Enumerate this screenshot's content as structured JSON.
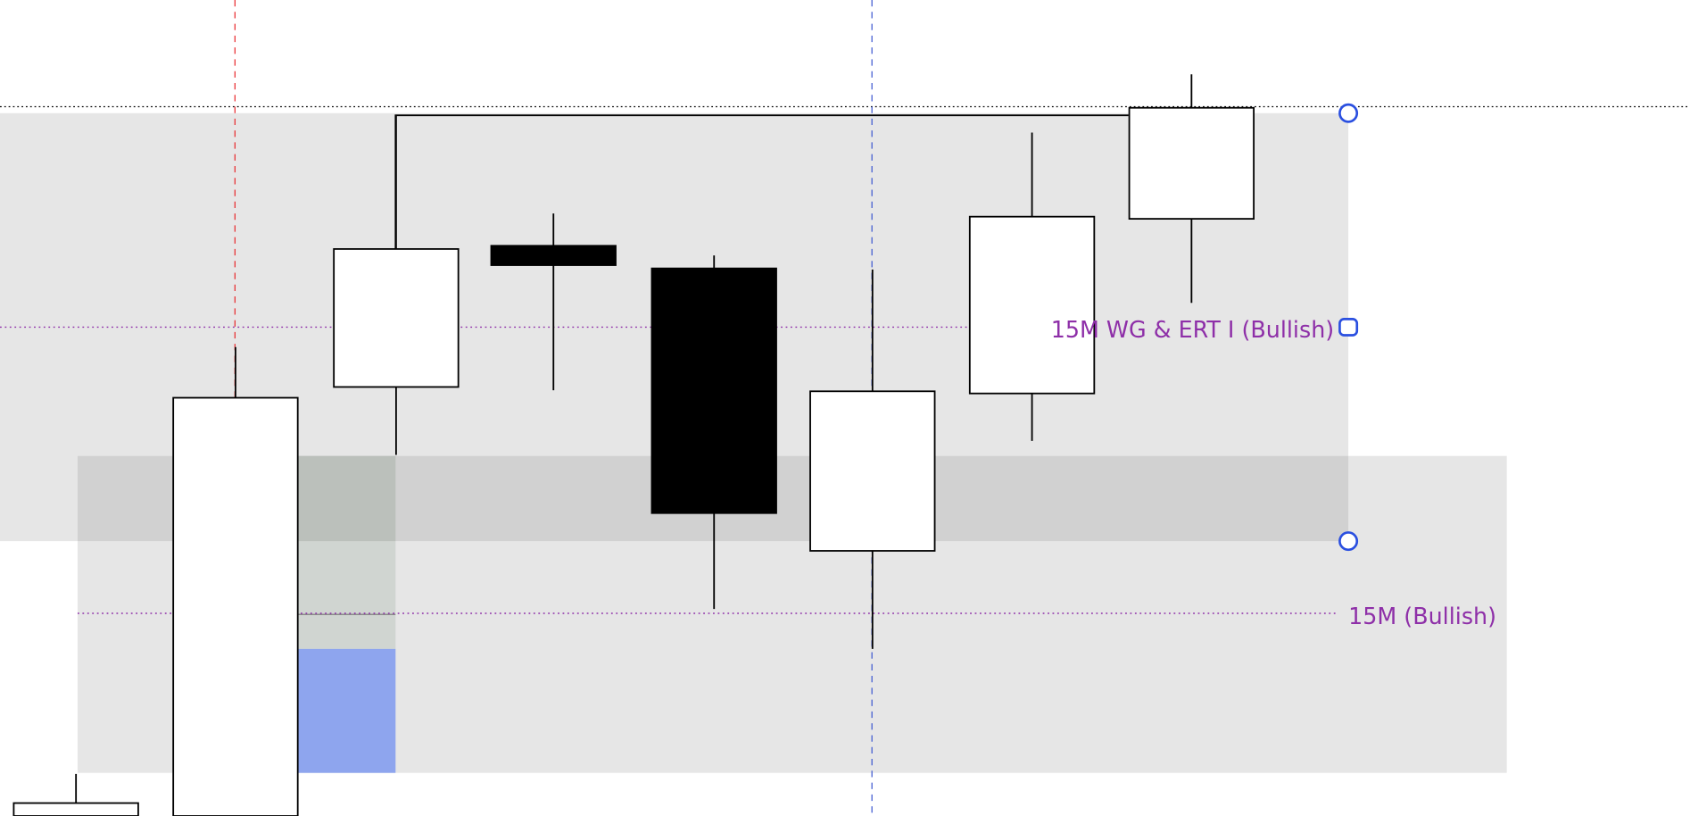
{
  "chart_data": {
    "type": "candlestick",
    "title": "",
    "xlabel": "",
    "ylabel": "",
    "grid": false,
    "ylim": [
      4.3,
      73.1
    ],
    "candles": [
      {
        "open": 4.3,
        "high": 8.2,
        "low": 4.3,
        "close": 5.5
      },
      {
        "open": 4.3,
        "high": 47.8,
        "low": 4.3,
        "close": 43.1
      },
      {
        "open": 44.1,
        "high": 69.3,
        "low": 37.8,
        "close": 56.9
      },
      {
        "open": 57.2,
        "high": 60.2,
        "low": 43.8,
        "close": 55.4
      },
      {
        "open": 55.1,
        "high": 56.3,
        "low": 23.5,
        "close": 32.4
      },
      {
        "open": 28.9,
        "high": 55.0,
        "low": 19.8,
        "close": 43.7
      },
      {
        "open": 43.5,
        "high": 67.7,
        "low": 39.1,
        "close": 59.9
      },
      {
        "open": 59.7,
        "high": 73.1,
        "low": 51.9,
        "close": 70.0
      }
    ],
    "annotations": {
      "upper_zone_label": "15M WG & ERT I (Bullish)",
      "lower_zone_label": "15M (Bullish)",
      "upper_zone": {
        "top": 69.5,
        "bottom": 29.8,
        "midline": 49.7
      },
      "lower_zone": {
        "top": 37.7,
        "bottom": 8.3,
        "midline": 23.1
      },
      "top_price_line": 70.1,
      "range_line_level": 69.3,
      "highlight_zone": {
        "top": 37.7,
        "bottom": 19.8,
        "line": 23.0
      },
      "blue_zone": {
        "top": 19.8,
        "bottom": 8.3
      }
    },
    "colors": {
      "bull_fill": "#ffffff",
      "bear_fill": "#000000",
      "zone": "#e6e6e6",
      "zone_overlap": "#d1d1d1",
      "label": "#8e2fa8",
      "handle": "#2a4fe0",
      "red_vline": "#e8262a",
      "blue_vline": "#3a55d0",
      "highlight": "#d0d5d1",
      "blue_zone": "#8ea5ee"
    }
  }
}
